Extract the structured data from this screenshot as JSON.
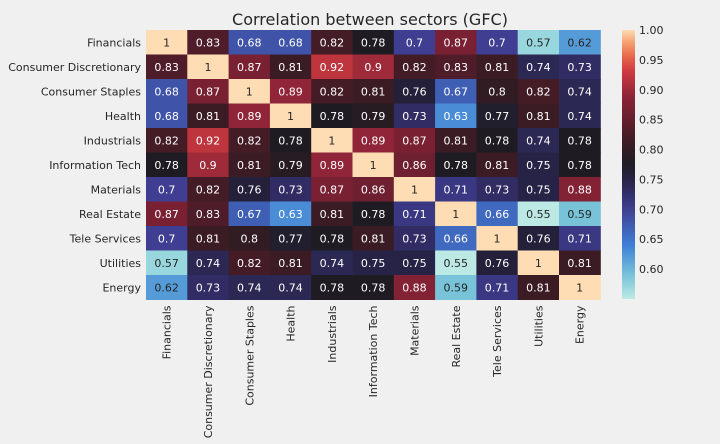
{
  "chart_data": {
    "type": "heatmap",
    "title": "Correlation between sectors (GFC)",
    "row_labels": [
      "Financials",
      "Consumer Discretionary",
      "Consumer Staples",
      "Health",
      "Industrials",
      "Information Tech",
      "Materials",
      "Real Estate",
      "Tele Services",
      "Utilities",
      "Energy"
    ],
    "col_labels": [
      "Financials",
      "Consumer Discretionary",
      "Consumer Staples",
      "Health",
      "Industrials",
      "Information Tech",
      "Materials",
      "Real Estate",
      "Tele Services",
      "Utilities",
      "Energy"
    ],
    "values": [
      [
        1,
        0.83,
        0.68,
        0.68,
        0.82,
        0.78,
        0.7,
        0.87,
        0.7,
        0.57,
        0.62
      ],
      [
        0.83,
        1,
        0.87,
        0.81,
        0.92,
        0.9,
        0.82,
        0.83,
        0.81,
        0.74,
        0.73
      ],
      [
        0.68,
        0.87,
        1,
        0.89,
        0.82,
        0.81,
        0.76,
        0.67,
        0.8,
        0.82,
        0.74
      ],
      [
        0.68,
        0.81,
        0.89,
        1,
        0.78,
        0.79,
        0.73,
        0.63,
        0.77,
        0.81,
        0.74
      ],
      [
        0.82,
        0.92,
        0.82,
        0.78,
        1,
        0.89,
        0.87,
        0.81,
        0.78,
        0.74,
        0.78
      ],
      [
        0.78,
        0.9,
        0.81,
        0.79,
        0.89,
        1,
        0.86,
        0.78,
        0.81,
        0.75,
        0.78
      ],
      [
        0.7,
        0.82,
        0.76,
        0.73,
        0.87,
        0.86,
        1,
        0.71,
        0.73,
        0.75,
        0.88
      ],
      [
        0.87,
        0.83,
        0.67,
        0.63,
        0.81,
        0.78,
        0.71,
        1,
        0.66,
        0.55,
        0.59
      ],
      [
        0.7,
        0.81,
        0.8,
        0.77,
        0.78,
        0.81,
        0.73,
        0.66,
        1,
        0.76,
        0.71
      ],
      [
        0.57,
        0.74,
        0.82,
        0.81,
        0.74,
        0.75,
        0.75,
        0.55,
        0.76,
        1,
        0.81
      ],
      [
        0.62,
        0.73,
        0.74,
        0.74,
        0.78,
        0.78,
        0.88,
        0.59,
        0.71,
        0.81,
        1
      ]
    ],
    "colorbar": {
      "min": 0.55,
      "max": 1.0,
      "center": 0.78,
      "ticks": [
        "1.00",
        "0.95",
        "0.90",
        "0.85",
        "0.80",
        "0.75",
        "0.70",
        "0.65",
        "0.60"
      ],
      "colormap": "icefire"
    },
    "grid": false
  }
}
